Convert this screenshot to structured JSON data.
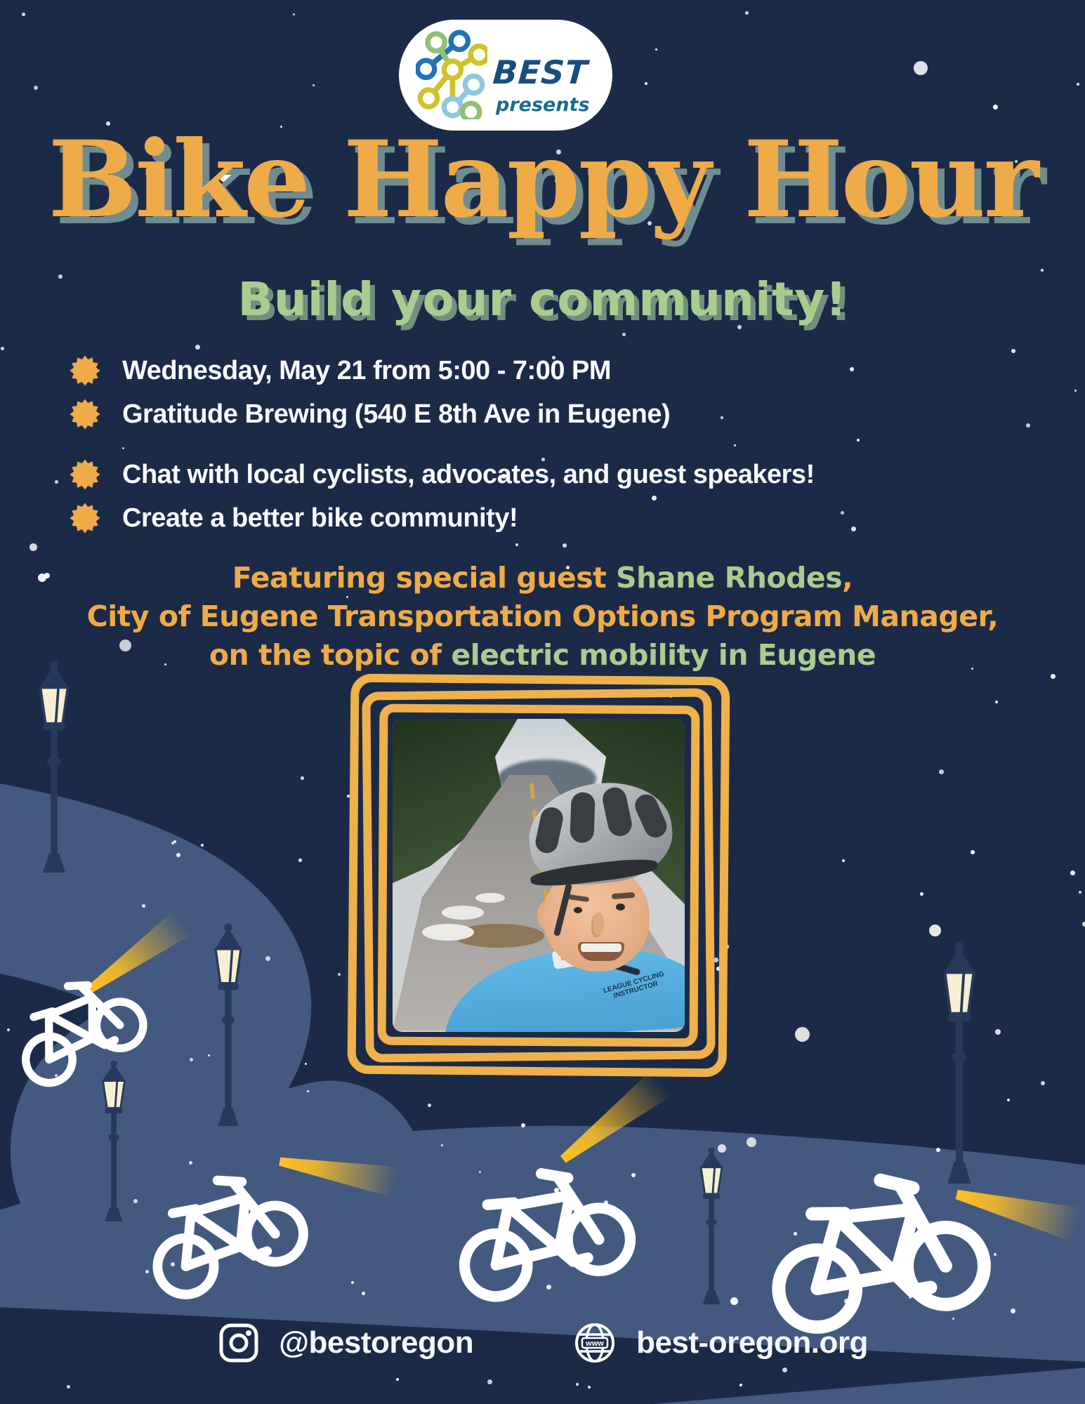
{
  "colors": {
    "bg_navy": "#1b2a47",
    "road_blue": "#43597f",
    "accent_orange": "#eeab47",
    "accent_green": "#a9cd8e",
    "title_shadow": "#6f8c91",
    "subtitle_shadow": "#71907f",
    "beam_yellow": "#ffc125",
    "lamp_glass_cream": "#f7efd0",
    "lamp_post_navy": "#273a5c",
    "logo_blue": "#2273b4",
    "logo_green": "#92c071",
    "logo_yellow": "#cfc32b",
    "logo_lightblue": "#8ec9de",
    "brand_blue": "#17507e",
    "brand_teal": "#1a6c8d",
    "frame_yellow": "#efb14c",
    "white": "#ffffff"
  },
  "header": {
    "brand": "BEST",
    "tagline": "presents"
  },
  "title": "Bike Happy Hour",
  "subtitle": "Build your community!",
  "details": [
    "Wednesday, May 21 from 5:00 - 7:00 PM",
    "Gratitude Brewing (540 E 8th Ave in Eugene)",
    "Chat with local cyclists, advocates, and guest speakers!",
    "Create a better bike community!"
  ],
  "featuring": {
    "line1_orange": "Featuring special guest",
    "line1_green": "Shane Rhodes",
    "line1_suffix": ",",
    "line2": "City of Eugene Transportation Options Program Manager,",
    "line3_orange": "on the topic of",
    "line3_green": "electric mobility in Eugene"
  },
  "photo": {
    "shirt_text": "LEAGUE CYCLING INSTRUCTOR"
  },
  "footer": {
    "instagram": "@bestoregon",
    "website": "best-oregon.org",
    "globe_label": "www"
  }
}
